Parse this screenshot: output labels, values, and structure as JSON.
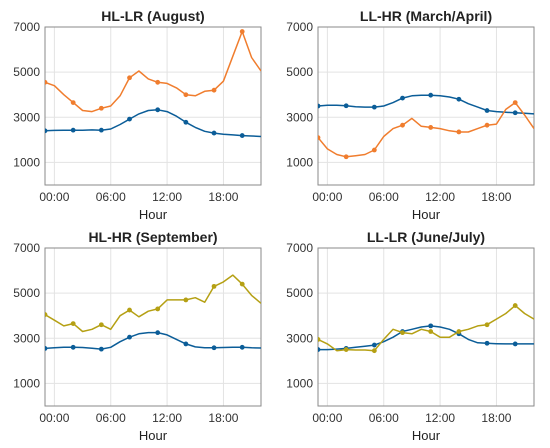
{
  "chart_data": [
    {
      "type": "line",
      "title": "HL-LR (August)",
      "xlabel": "Hour",
      "xticks": [
        {
          "v": 0,
          "label": "00:00"
        },
        {
          "v": 6,
          "label": "06:00"
        },
        {
          "v": 12,
          "label": "12:00"
        },
        {
          "v": 18,
          "label": "18:00"
        }
      ],
      "xlim": [
        -1,
        22
      ],
      "ylim": [
        0,
        7000
      ],
      "yticks": [
        1000,
        3000,
        5000,
        7000
      ],
      "grid": true,
      "series": [
        {
          "color": "#0b5d98",
          "x": [
            -1,
            0,
            1,
            2,
            3,
            4,
            5,
            6,
            7,
            8,
            9,
            10,
            11,
            12,
            13,
            14,
            15,
            16,
            17,
            18,
            19,
            20,
            21,
            22
          ],
          "y": [
            2400,
            2420,
            2430,
            2430,
            2430,
            2440,
            2430,
            2480,
            2680,
            2920,
            3150,
            3300,
            3330,
            3250,
            3050,
            2780,
            2550,
            2380,
            2300,
            2250,
            2220,
            2190,
            2170,
            2150
          ],
          "markers": [
            -1,
            2,
            5,
            8,
            11,
            14,
            17,
            20
          ]
        },
        {
          "color": "#f07d2e",
          "x": [
            -1,
            0,
            1,
            2,
            3,
            4,
            5,
            6,
            7,
            8,
            9,
            10,
            11,
            12,
            13,
            14,
            15,
            16,
            17,
            18,
            19,
            20,
            21,
            22
          ],
          "y": [
            4550,
            4400,
            4000,
            3650,
            3300,
            3250,
            3400,
            3500,
            3950,
            4750,
            5050,
            4700,
            4550,
            4500,
            4300,
            4000,
            3950,
            4150,
            4200,
            4600,
            5700,
            6800,
            5650,
            5050
          ],
          "markers": [
            -1,
            2,
            5,
            8,
            11,
            14,
            17,
            20
          ]
        }
      ]
    },
    {
      "type": "line",
      "title": "LL-HR (March/April)",
      "xlabel": "Hour",
      "xticks": [
        {
          "v": 0,
          "label": "00:00"
        },
        {
          "v": 6,
          "label": "06:00"
        },
        {
          "v": 12,
          "label": "12:00"
        },
        {
          "v": 18,
          "label": "18:00"
        }
      ],
      "xlim": [
        -1,
        22
      ],
      "ylim": [
        0,
        7000
      ],
      "yticks": [
        1000,
        3000,
        5000,
        7000
      ],
      "grid": true,
      "series": [
        {
          "color": "#0b5d98",
          "x": [
            -1,
            0,
            1,
            2,
            3,
            4,
            5,
            6,
            7,
            8,
            9,
            10,
            11,
            12,
            13,
            14,
            15,
            16,
            17,
            18,
            19,
            20,
            21,
            22
          ],
          "y": [
            3500,
            3530,
            3530,
            3510,
            3470,
            3450,
            3450,
            3500,
            3650,
            3850,
            3950,
            3980,
            3980,
            3950,
            3900,
            3800,
            3600,
            3450,
            3300,
            3250,
            3220,
            3200,
            3180,
            3150
          ],
          "markers": [
            -1,
            2,
            5,
            8,
            11,
            14,
            17,
            20
          ]
        },
        {
          "color": "#f07d2e",
          "x": [
            -1,
            0,
            1,
            2,
            3,
            4,
            5,
            6,
            7,
            8,
            9,
            10,
            11,
            12,
            13,
            14,
            15,
            16,
            17,
            18,
            19,
            20,
            21,
            22
          ],
          "y": [
            2100,
            1600,
            1350,
            1250,
            1300,
            1350,
            1550,
            2150,
            2500,
            2650,
            2950,
            2600,
            2550,
            2500,
            2400,
            2350,
            2350,
            2500,
            2650,
            2700,
            3350,
            3650,
            3100,
            2500
          ],
          "markers": [
            -1,
            2,
            5,
            8,
            11,
            14,
            17,
            20
          ]
        }
      ]
    },
    {
      "type": "line",
      "title": "HL-HR (September)",
      "xlabel": "Hour",
      "xticks": [
        {
          "v": 0,
          "label": "00:00"
        },
        {
          "v": 6,
          "label": "06:00"
        },
        {
          "v": 12,
          "label": "12:00"
        },
        {
          "v": 18,
          "label": "18:00"
        }
      ],
      "xlim": [
        -1,
        22
      ],
      "ylim": [
        0,
        7000
      ],
      "yticks": [
        1000,
        3000,
        5000,
        7000
      ],
      "grid": true,
      "series": [
        {
          "color": "#0b5d98",
          "x": [
            -1,
            0,
            1,
            2,
            3,
            4,
            5,
            6,
            7,
            8,
            9,
            10,
            11,
            12,
            13,
            14,
            15,
            16,
            17,
            18,
            19,
            20,
            21,
            22
          ],
          "y": [
            2550,
            2580,
            2600,
            2600,
            2590,
            2560,
            2520,
            2600,
            2850,
            3050,
            3200,
            3250,
            3250,
            3150,
            2950,
            2750,
            2620,
            2580,
            2580,
            2590,
            2600,
            2600,
            2580,
            2570
          ],
          "markers": [
            -1,
            2,
            5,
            8,
            11,
            14,
            17,
            20
          ]
        },
        {
          "color": "#b5a014",
          "x": [
            -1,
            0,
            1,
            2,
            3,
            4,
            5,
            6,
            7,
            8,
            9,
            10,
            11,
            12,
            13,
            14,
            15,
            16,
            17,
            18,
            19,
            20,
            21,
            22
          ],
          "y": [
            4050,
            3800,
            3550,
            3650,
            3300,
            3400,
            3600,
            3400,
            4000,
            4250,
            3950,
            4200,
            4300,
            4700,
            4700,
            4700,
            4800,
            4600,
            5300,
            5500,
            5800,
            5400,
            4900,
            4550
          ],
          "markers": [
            -1,
            2,
            5,
            8,
            11,
            14,
            17,
            20
          ]
        }
      ]
    },
    {
      "type": "line",
      "title": "LL-LR (June/July)",
      "xlabel": "Hour",
      "xticks": [
        {
          "v": 0,
          "label": "00:00"
        },
        {
          "v": 6,
          "label": "06:00"
        },
        {
          "v": 12,
          "label": "12:00"
        },
        {
          "v": 18,
          "label": "18:00"
        }
      ],
      "xlim": [
        -1,
        22
      ],
      "ylim": [
        0,
        7000
      ],
      "yticks": [
        1000,
        3000,
        5000,
        7000
      ],
      "grid": true,
      "series": [
        {
          "color": "#0b5d98",
          "x": [
            -1,
            0,
            1,
            2,
            3,
            4,
            5,
            6,
            7,
            8,
            9,
            10,
            11,
            12,
            13,
            14,
            15,
            16,
            17,
            18,
            19,
            20,
            21,
            22
          ],
          "y": [
            2500,
            2500,
            2520,
            2550,
            2600,
            2650,
            2700,
            2850,
            3050,
            3300,
            3400,
            3500,
            3550,
            3500,
            3400,
            3200,
            2950,
            2800,
            2780,
            2760,
            2750,
            2750,
            2750,
            2750
          ],
          "markers": [
            -1,
            2,
            5,
            8,
            11,
            14,
            17,
            20
          ]
        },
        {
          "color": "#b5a014",
          "x": [
            -1,
            0,
            1,
            2,
            3,
            4,
            5,
            6,
            7,
            8,
            9,
            10,
            11,
            12,
            13,
            14,
            15,
            16,
            17,
            18,
            19,
            20,
            21,
            22
          ],
          "y": [
            2950,
            2750,
            2450,
            2500,
            2480,
            2480,
            2450,
            2950,
            3400,
            3250,
            3200,
            3400,
            3300,
            3050,
            3050,
            3300,
            3400,
            3550,
            3600,
            3850,
            4100,
            4450,
            4100,
            3850
          ],
          "markers": [
            -1,
            2,
            5,
            8,
            11,
            14,
            17,
            20
          ]
        }
      ]
    }
  ]
}
